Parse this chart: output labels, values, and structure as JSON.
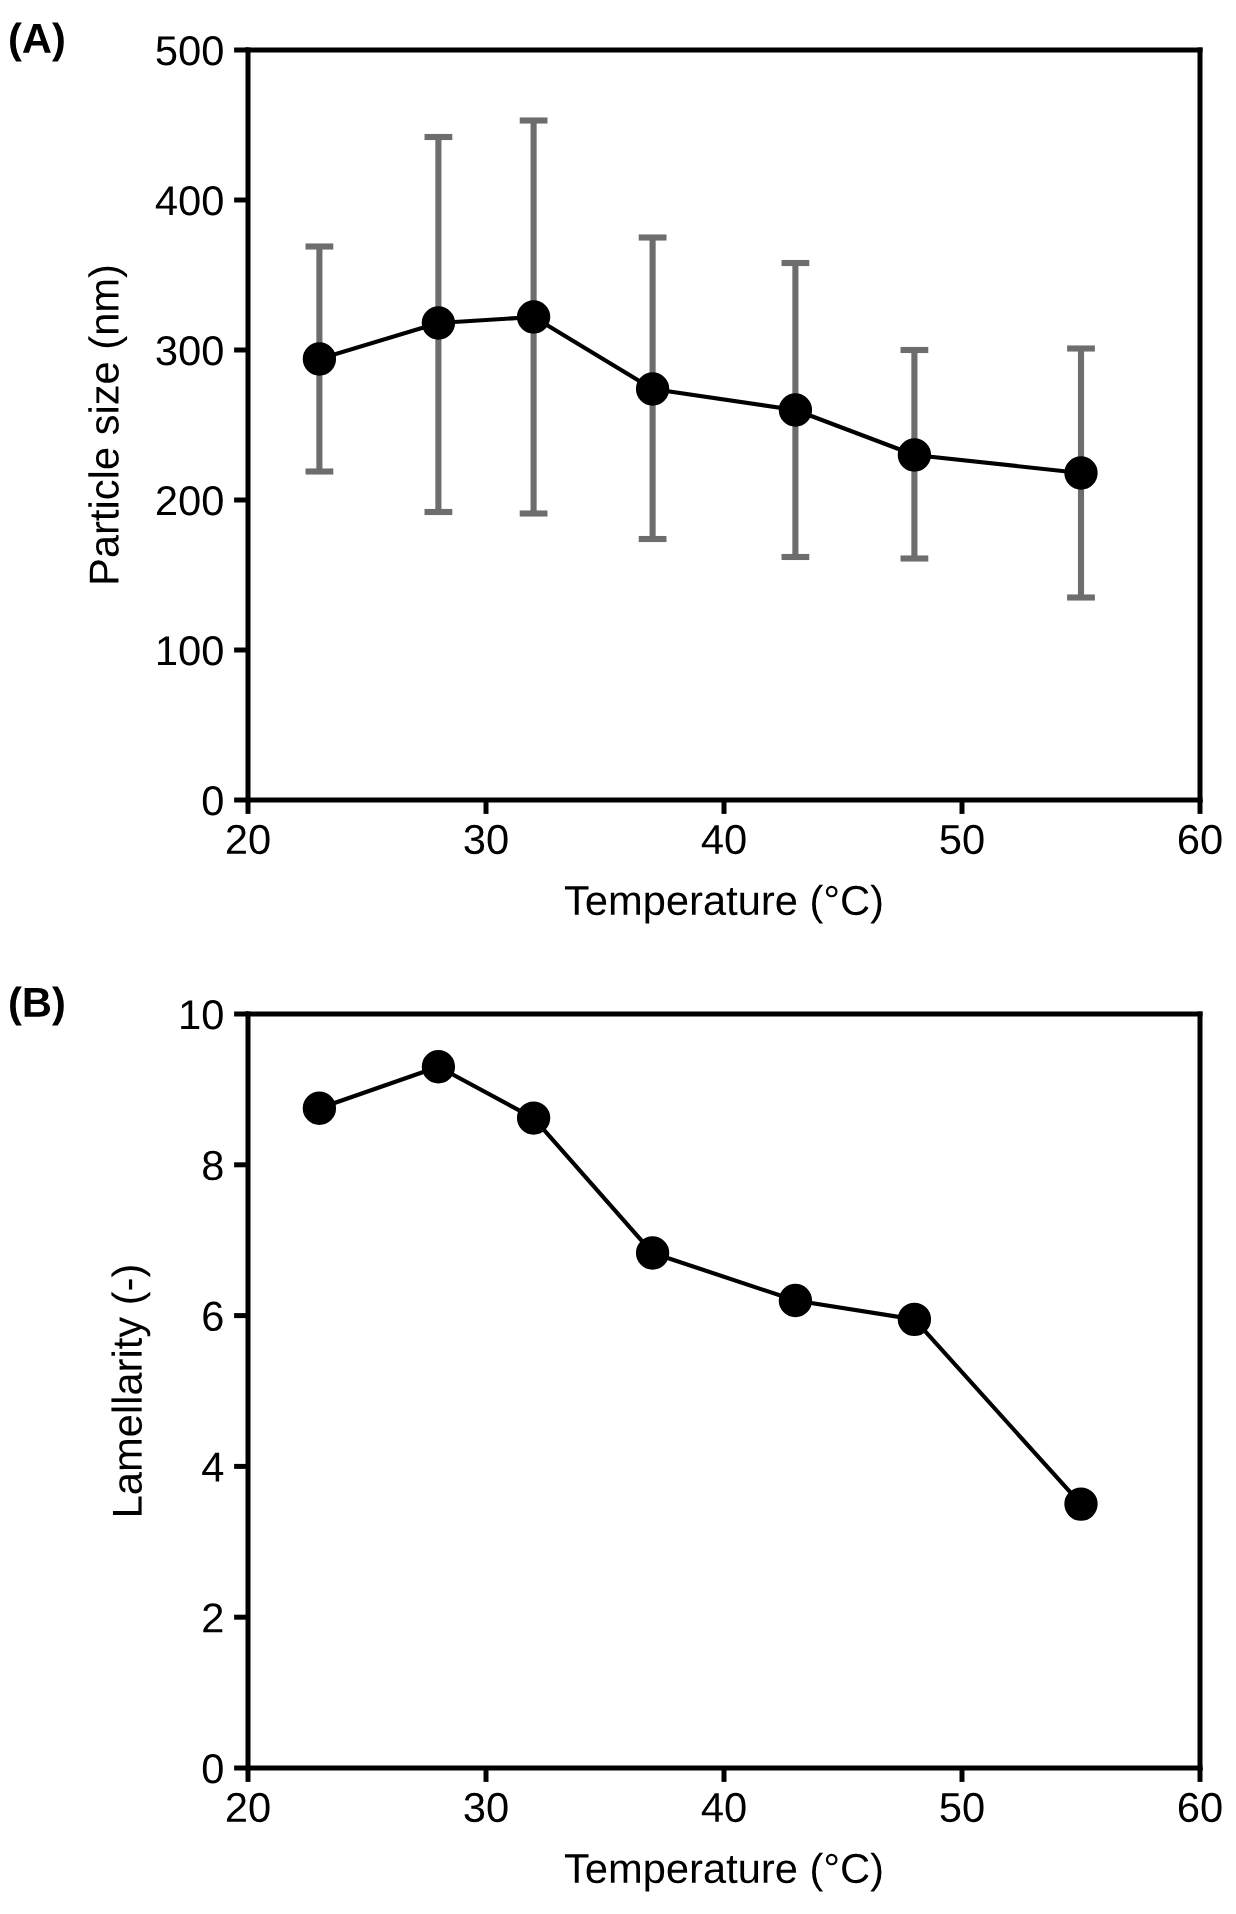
{
  "chart_data": [
    {
      "type": "line",
      "title": "(A)",
      "xlabel": "Temperature (°C)",
      "ylabel": "Particle size (nm)",
      "x": [
        23,
        28,
        32,
        37,
        43,
        48,
        55
      ],
      "series": [
        {
          "color": "#000000",
          "values": [
            294,
            318,
            322,
            274,
            260,
            230,
            218
          ],
          "errors": [
            [
              219,
              369
            ],
            [
              192,
              442
            ],
            [
              191,
              453
            ],
            [
              174,
              375
            ],
            [
              162,
              358
            ],
            [
              161,
              300
            ],
            [
              135,
              301
            ]
          ]
        }
      ],
      "xlim": [
        20,
        60
      ],
      "xticks": [
        20,
        30,
        40,
        50,
        60
      ],
      "ylim": [
        0,
        500
      ],
      "yticks": [
        0,
        100,
        200,
        300,
        400,
        500
      ],
      "marker": "circle",
      "line_style": "solid",
      "grid": false,
      "legend": false
    },
    {
      "type": "line",
      "title": "(B)",
      "xlabel": "Temperature (°C)",
      "ylabel": "Lamellarity (-)",
      "x": [
        23,
        28,
        32,
        37,
        43,
        48,
        55
      ],
      "series": [
        {
          "color": "#000000",
          "values": [
            8.75,
            9.3,
            8.62,
            6.83,
            6.2,
            5.95,
            3.5
          ]
        }
      ],
      "xlim": [
        20,
        60
      ],
      "xticks": [
        20,
        30,
        40,
        50,
        60
      ],
      "ylim": [
        0,
        10
      ],
      "yticks": [
        0,
        2,
        4,
        6,
        8,
        10
      ],
      "marker": "circle",
      "line_style": "solid",
      "grid": false,
      "legend": false
    }
  ]
}
